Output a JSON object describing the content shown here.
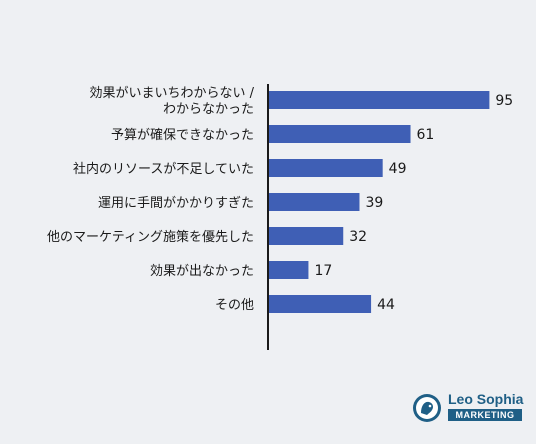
{
  "chart_data": {
    "type": "bar",
    "orientation": "horizontal",
    "categories": [
      [
        "効果がいまいちわからない /",
        "わからなかった"
      ],
      [
        "予算が確保できなかった"
      ],
      [
        "社内のリソースが不足していた"
      ],
      [
        "運用に手間がかかりすぎた"
      ],
      [
        "他のマーケティング施策を優先した"
      ],
      [
        "効果が出なかった"
      ],
      [
        "その他"
      ]
    ],
    "values": [
      95,
      61,
      49,
      39,
      32,
      17,
      44
    ],
    "xlim": [
      0,
      100
    ],
    "bar_color": "#3f5fb5",
    "grid": false
  },
  "brand": {
    "name": "Leo Sophia",
    "tag": "MARKETING",
    "color": "#1f5f86"
  }
}
